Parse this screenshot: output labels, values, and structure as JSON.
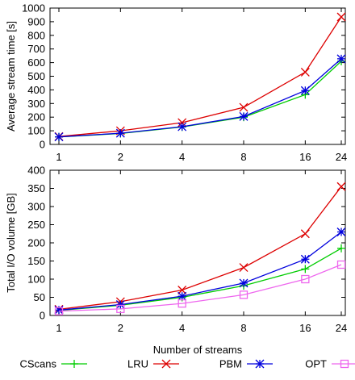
{
  "chart_data": [
    {
      "type": "line",
      "xscale": "log2",
      "x": [
        1,
        2,
        4,
        8,
        16,
        24
      ],
      "xticks": [
        "1",
        "2",
        "4",
        "8",
        "16",
        "24"
      ],
      "xlabel": "",
      "ylabel": "Average stream time [s]",
      "ylim": [
        0,
        1000
      ],
      "yticks": [
        0,
        100,
        200,
        300,
        400,
        500,
        600,
        700,
        800,
        900,
        1000
      ],
      "grid": false,
      "series": [
        {
          "name": "CScans",
          "color": "#00cc00",
          "marker": "plus",
          "values": [
            55,
            80,
            128,
            200,
            365,
            610
          ]
        },
        {
          "name": "LRU",
          "color": "#dd0000",
          "marker": "x",
          "values": [
            58,
            100,
            160,
            272,
            530,
            935
          ]
        },
        {
          "name": "PBM",
          "color": "#0000dd",
          "marker": "asterisk",
          "values": [
            55,
            82,
            130,
            205,
            395,
            628
          ]
        }
      ]
    },
    {
      "type": "line",
      "xscale": "log2",
      "x": [
        1,
        2,
        4,
        8,
        16,
        24
      ],
      "xticks": [
        "1",
        "2",
        "4",
        "8",
        "16",
        "24"
      ],
      "xlabel": "Number of streams",
      "ylabel": "Total I/O volume [GB]",
      "ylim": [
        0,
        400
      ],
      "yticks": [
        0,
        50,
        100,
        150,
        200,
        250,
        300,
        350,
        400
      ],
      "grid": false,
      "series": [
        {
          "name": "CScans",
          "color": "#00cc00",
          "marker": "plus",
          "values": [
            14,
            28,
            50,
            82,
            128,
            185
          ]
        },
        {
          "name": "LRU",
          "color": "#dd0000",
          "marker": "x",
          "values": [
            17,
            38,
            70,
            132,
            225,
            355
          ]
        },
        {
          "name": "PBM",
          "color": "#0000dd",
          "marker": "asterisk",
          "values": [
            15,
            30,
            53,
            89,
            155,
            230
          ]
        },
        {
          "name": "OPT",
          "color": "#ee66ee",
          "marker": "square",
          "values": [
            12,
            18,
            33,
            57,
            100,
            140
          ]
        }
      ]
    }
  ],
  "legend": {
    "placement": "bottom",
    "items": [
      {
        "label": "CScans",
        "color": "#00cc00",
        "marker": "plus"
      },
      {
        "label": "LRU",
        "color": "#dd0000",
        "marker": "x"
      },
      {
        "label": "PBM",
        "color": "#0000dd",
        "marker": "asterisk"
      },
      {
        "label": "OPT",
        "color": "#ee66ee",
        "marker": "square"
      }
    ]
  }
}
